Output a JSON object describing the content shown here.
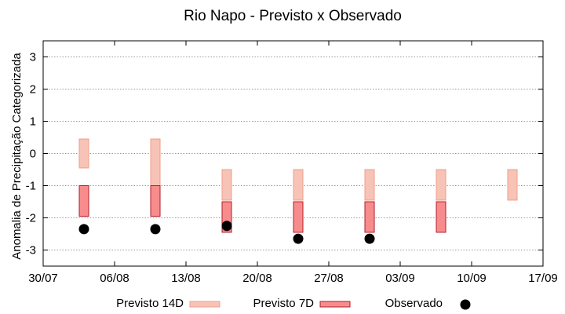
{
  "chart_data": {
    "type": "bar",
    "title": "Rio Napo - Previsto x Observado",
    "ylabel": "Anomalia de Precipitação Categorizada",
    "xlabel": "",
    "x_ticks": [
      "30/07",
      "06/08",
      "13/08",
      "20/08",
      "27/08",
      "03/09",
      "10/09",
      "17/09"
    ],
    "y_ticks": [
      "3",
      "2",
      "1",
      "0",
      "-1",
      "-2",
      "-3"
    ],
    "ylim": [
      -3.5,
      3.5
    ],
    "grid": "horizontal dotted",
    "legend_placement": "bottom",
    "series": [
      {
        "name": "Previsto 14D",
        "kind": "range",
        "color": "#f7c3b6",
        "border": "#f29c89",
        "points": [
          {
            "x": "03/08",
            "low": -0.45,
            "high": 0.45
          },
          {
            "x": "10/08",
            "low": -1.0,
            "high": 0.45
          },
          {
            "x": "17/08",
            "low": -1.45,
            "high": -0.5
          },
          {
            "x": "24/08",
            "low": -1.45,
            "high": -0.5
          },
          {
            "x": "31/08",
            "low": -1.45,
            "high": -0.5
          },
          {
            "x": "07/09",
            "low": -1.45,
            "high": -0.5
          },
          {
            "x": "14/09",
            "low": -1.45,
            "high": -0.5
          }
        ]
      },
      {
        "name": "Previsto 7D",
        "kind": "range",
        "color": "#f88c8c",
        "border": "#b01e2c",
        "points": [
          {
            "x": "03/08",
            "low": -1.95,
            "high": -1.0
          },
          {
            "x": "10/08",
            "low": -1.95,
            "high": -1.0
          },
          {
            "x": "17/08",
            "low": -2.45,
            "high": -1.5
          },
          {
            "x": "24/08",
            "low": -2.45,
            "high": -1.5
          },
          {
            "x": "31/08",
            "low": -2.45,
            "high": -1.5
          },
          {
            "x": "07/09",
            "low": -2.45,
            "high": -1.5
          }
        ]
      },
      {
        "name": "Observado",
        "kind": "point",
        "color": "#000000",
        "points": [
          {
            "x": "03/08",
            "y": -2.35
          },
          {
            "x": "10/08",
            "y": -2.35
          },
          {
            "x": "17/08",
            "y": -2.25
          },
          {
            "x": "24/08",
            "y": -2.65
          },
          {
            "x": "31/08",
            "y": -2.65
          }
        ]
      }
    ]
  }
}
